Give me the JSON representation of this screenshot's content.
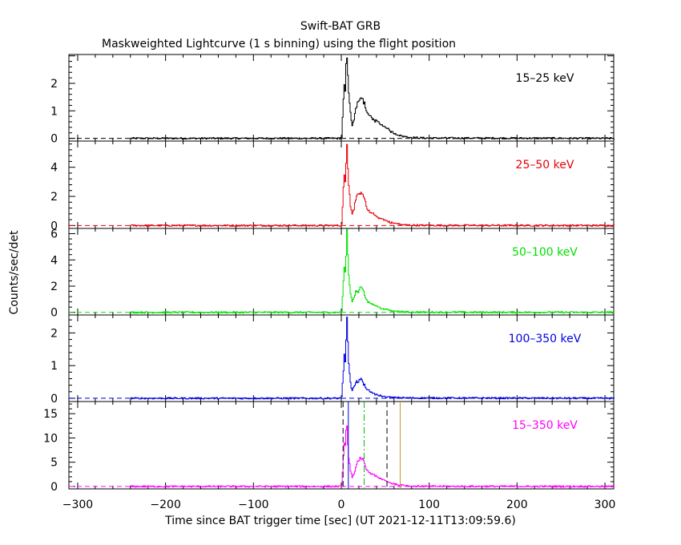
{
  "chart_data": {
    "type": "line",
    "title": "Swift-BAT GRB",
    "subtitle": "Maskweighted Lightcurve (1 s binning) using the flight position",
    "xlabel": "Time since BAT trigger time [sec] (UT 2021-12-11T13:09:59.6)",
    "ylabel": "Counts/sec/det",
    "xlim": [
      -310,
      310
    ],
    "xticks": [
      -300,
      -200,
      -100,
      0,
      100,
      200,
      300
    ],
    "data_span": [
      -240,
      310
    ],
    "grid": false,
    "panels": [
      {
        "name": "15-25 keV",
        "label": "15–25 keV",
        "color": "#000000",
        "ylim": [
          -0.1,
          3.05
        ],
        "yticks": [
          0,
          1,
          2
        ],
        "profile": [
          [
            -240,
            0
          ],
          [
            -2,
            0
          ],
          [
            0,
            0.05
          ],
          [
            2,
            1.4
          ],
          [
            3,
            2.0
          ],
          [
            4,
            1.8
          ],
          [
            5,
            2.6
          ],
          [
            6,
            3.0
          ],
          [
            7,
            2.2
          ],
          [
            8,
            1.6
          ],
          [
            10,
            0.9
          ],
          [
            12,
            0.5
          ],
          [
            14,
            0.7
          ],
          [
            16,
            1.1
          ],
          [
            18,
            1.3
          ],
          [
            20,
            1.35
          ],
          [
            22,
            1.5
          ],
          [
            24,
            1.4
          ],
          [
            26,
            1.25
          ],
          [
            28,
            1.0
          ],
          [
            30,
            0.85
          ],
          [
            33,
            0.8
          ],
          [
            36,
            0.7
          ],
          [
            40,
            0.6
          ],
          [
            44,
            0.5
          ],
          [
            48,
            0.45
          ],
          [
            52,
            0.35
          ],
          [
            56,
            0.25
          ],
          [
            60,
            0.18
          ],
          [
            65,
            0.12
          ],
          [
            70,
            0.07
          ],
          [
            80,
            0.03
          ],
          [
            95,
            0.01
          ],
          [
            310,
            0
          ]
        ]
      },
      {
        "name": "25-50 keV",
        "label": "25–50 keV",
        "color": "#e8000b",
        "ylim": [
          -0.2,
          5.8
        ],
        "yticks": [
          0,
          2,
          4
        ],
        "profile": [
          [
            -240,
            0
          ],
          [
            -2,
            0
          ],
          [
            0,
            0.05
          ],
          [
            2,
            2.5
          ],
          [
            3,
            3.5
          ],
          [
            4,
            3.2
          ],
          [
            5,
            4.5
          ],
          [
            6,
            5.6
          ],
          [
            7,
            4.0
          ],
          [
            8,
            2.8
          ],
          [
            10,
            1.4
          ],
          [
            12,
            0.8
          ],
          [
            14,
            1.2
          ],
          [
            16,
            1.8
          ],
          [
            18,
            2.0
          ],
          [
            20,
            2.1
          ],
          [
            22,
            2.35
          ],
          [
            24,
            2.2
          ],
          [
            26,
            1.8
          ],
          [
            28,
            1.3
          ],
          [
            30,
            1.0
          ],
          [
            33,
            0.9
          ],
          [
            36,
            0.8
          ],
          [
            40,
            0.6
          ],
          [
            44,
            0.5
          ],
          [
            48,
            0.4
          ],
          [
            52,
            0.3
          ],
          [
            56,
            0.2
          ],
          [
            60,
            0.15
          ],
          [
            65,
            0.1
          ],
          [
            70,
            0.05
          ],
          [
            80,
            0.02
          ],
          [
            95,
            0.01
          ],
          [
            310,
            0
          ]
        ]
      },
      {
        "name": "50-100 keV",
        "label": "50–100 keV",
        "color": "#00e000",
        "ylim": [
          -0.2,
          6.4
        ],
        "yticks": [
          0,
          2,
          4,
          6
        ],
        "profile": [
          [
            -240,
            0
          ],
          [
            -2,
            0
          ],
          [
            0,
            0.05
          ],
          [
            2,
            2.4
          ],
          [
            3,
            3.6
          ],
          [
            4,
            3.1
          ],
          [
            5,
            4.5
          ],
          [
            6,
            6.4
          ],
          [
            7,
            4.6
          ],
          [
            8,
            2.8
          ],
          [
            10,
            1.4
          ],
          [
            12,
            0.8
          ],
          [
            14,
            1.2
          ],
          [
            16,
            1.6
          ],
          [
            18,
            1.6
          ],
          [
            20,
            1.7
          ],
          [
            22,
            1.9
          ],
          [
            24,
            1.8
          ],
          [
            26,
            1.4
          ],
          [
            28,
            1.0
          ],
          [
            30,
            0.8
          ],
          [
            33,
            0.7
          ],
          [
            36,
            0.6
          ],
          [
            40,
            0.45
          ],
          [
            44,
            0.35
          ],
          [
            48,
            0.25
          ],
          [
            52,
            0.2
          ],
          [
            56,
            0.12
          ],
          [
            60,
            0.08
          ],
          [
            70,
            0.04
          ],
          [
            80,
            0.02
          ],
          [
            95,
            0.01
          ],
          [
            310,
            0
          ]
        ]
      },
      {
        "name": "100-350 keV",
        "label": "100–350 keV",
        "color": "#0000e0",
        "ylim": [
          -0.1,
          2.55
        ],
        "yticks": [
          0,
          1,
          2
        ],
        "profile": [
          [
            -240,
            0
          ],
          [
            -2,
            0
          ],
          [
            0,
            0.05
          ],
          [
            2,
            0.8
          ],
          [
            3,
            1.3
          ],
          [
            4,
            1.1
          ],
          [
            5,
            1.8
          ],
          [
            6,
            2.55
          ],
          [
            7,
            1.7
          ],
          [
            8,
            1.0
          ],
          [
            10,
            0.45
          ],
          [
            12,
            0.25
          ],
          [
            14,
            0.35
          ],
          [
            16,
            0.5
          ],
          [
            18,
            0.5
          ],
          [
            20,
            0.55
          ],
          [
            22,
            0.6
          ],
          [
            24,
            0.5
          ],
          [
            26,
            0.4
          ],
          [
            28,
            0.3
          ],
          [
            30,
            0.25
          ],
          [
            33,
            0.2
          ],
          [
            36,
            0.15
          ],
          [
            40,
            0.1
          ],
          [
            45,
            0.07
          ],
          [
            50,
            0.04
          ],
          [
            60,
            0.02
          ],
          [
            80,
            0.01
          ],
          [
            310,
            0
          ]
        ]
      },
      {
        "name": "15-350 keV",
        "label": "15–350 keV",
        "color": "#ff00ff",
        "ylim": [
          -0.5,
          17.5
        ],
        "yticks": [
          0,
          5,
          10,
          15
        ],
        "profile": [
          [
            -240,
            0
          ],
          [
            -2,
            0
          ],
          [
            0,
            0.1
          ],
          [
            2,
            6
          ],
          [
            3,
            9
          ],
          [
            4,
            8
          ],
          [
            5,
            11
          ],
          [
            6,
            13
          ],
          [
            7,
            9
          ],
          [
            8,
            6
          ],
          [
            10,
            3
          ],
          [
            12,
            1.8
          ],
          [
            14,
            2.6
          ],
          [
            16,
            4
          ],
          [
            18,
            5
          ],
          [
            20,
            5.5
          ],
          [
            22,
            6
          ],
          [
            24,
            5.6
          ],
          [
            26,
            4.5
          ],
          [
            28,
            3.5
          ],
          [
            30,
            3
          ],
          [
            33,
            2.7
          ],
          [
            36,
            2.4
          ],
          [
            40,
            2
          ],
          [
            44,
            1.6
          ],
          [
            48,
            1.3
          ],
          [
            52,
            1.0
          ],
          [
            56,
            0.7
          ],
          [
            60,
            0.5
          ],
          [
            65,
            0.35
          ],
          [
            70,
            0.2
          ],
          [
            80,
            0.1
          ],
          [
            95,
            0.03
          ],
          [
            310,
            0
          ]
        ],
        "markers": [
          {
            "x": 2,
            "color": "#000000",
            "dash": "dash"
          },
          {
            "x": 8,
            "color": "#0000e0",
            "dash": "solid"
          },
          {
            "x": 26,
            "color": "#00c000",
            "dash": "dashdot"
          },
          {
            "x": 52,
            "color": "#000000",
            "dash": "dash"
          },
          {
            "x": 67,
            "color": "#c8961e",
            "dash": "solid"
          }
        ]
      }
    ]
  }
}
